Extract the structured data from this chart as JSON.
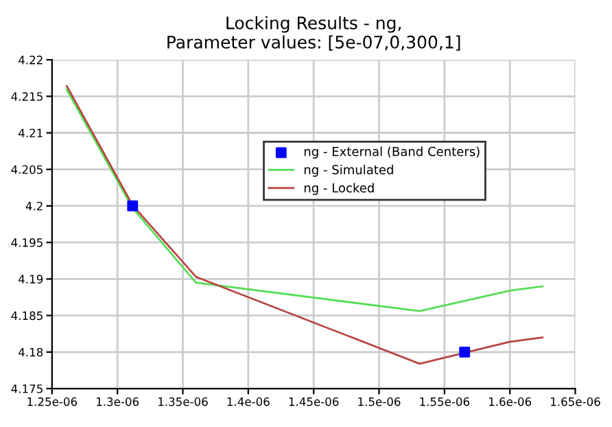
{
  "chart_data": {
    "type": "line",
    "title": "Locking Results - ng,\nParameter values: [5e-07,0,300,1]",
    "series": [
      {
        "name": "ng - External (Band Centers)",
        "type": "scatter",
        "marker": "square",
        "color": "#0000ff",
        "x": [
          1.3116e-06,
          1.5654e-06
        ],
        "values": [
          4.2,
          4.18
        ]
      },
      {
        "name": "ng - Simulated",
        "color": "#55dd55",
        "x": [
          1.2613e-06,
          1.3116e-06,
          1.36e-06,
          1.531e-06,
          1.6e-06,
          1.625e-06
        ],
        "values": [
          4.2159,
          4.1997,
          4.1895,
          4.1856,
          4.1884,
          4.189
        ]
      },
      {
        "name": "ng - Locked",
        "color": "#b84444",
        "x": [
          1.2613e-06,
          1.3116e-06,
          1.36e-06,
          1.531e-06,
          1.5654e-06,
          1.6e-06,
          1.625e-06
        ],
        "values": [
          4.2164,
          4.2001,
          4.1903,
          4.1784,
          4.1799,
          4.1814,
          4.182
        ]
      }
    ],
    "xlim": [
      1.25e-06,
      1.65e-06
    ],
    "ylim": [
      4.175,
      4.22
    ],
    "xticks": [
      {
        "value": 1.25e-06,
        "label": "1.25e-06"
      },
      {
        "value": 1.3e-06,
        "label": "1.3e-06"
      },
      {
        "value": 1.35e-06,
        "label": "1.35e-06"
      },
      {
        "value": 1.4e-06,
        "label": "1.4e-06"
      },
      {
        "value": 1.45e-06,
        "label": "1.45e-06"
      },
      {
        "value": 1.5e-06,
        "label": "1.5e-06"
      },
      {
        "value": 1.55e-06,
        "label": "1.55e-06"
      },
      {
        "value": 1.6e-06,
        "label": "1.6e-06"
      },
      {
        "value": 1.65e-06,
        "label": "1.65e-06"
      }
    ],
    "yticks": [
      4.175,
      4.18,
      4.185,
      4.19,
      4.195,
      4.2,
      4.205,
      4.21,
      4.215,
      4.22
    ],
    "grid": true,
    "legend": "top right"
  }
}
